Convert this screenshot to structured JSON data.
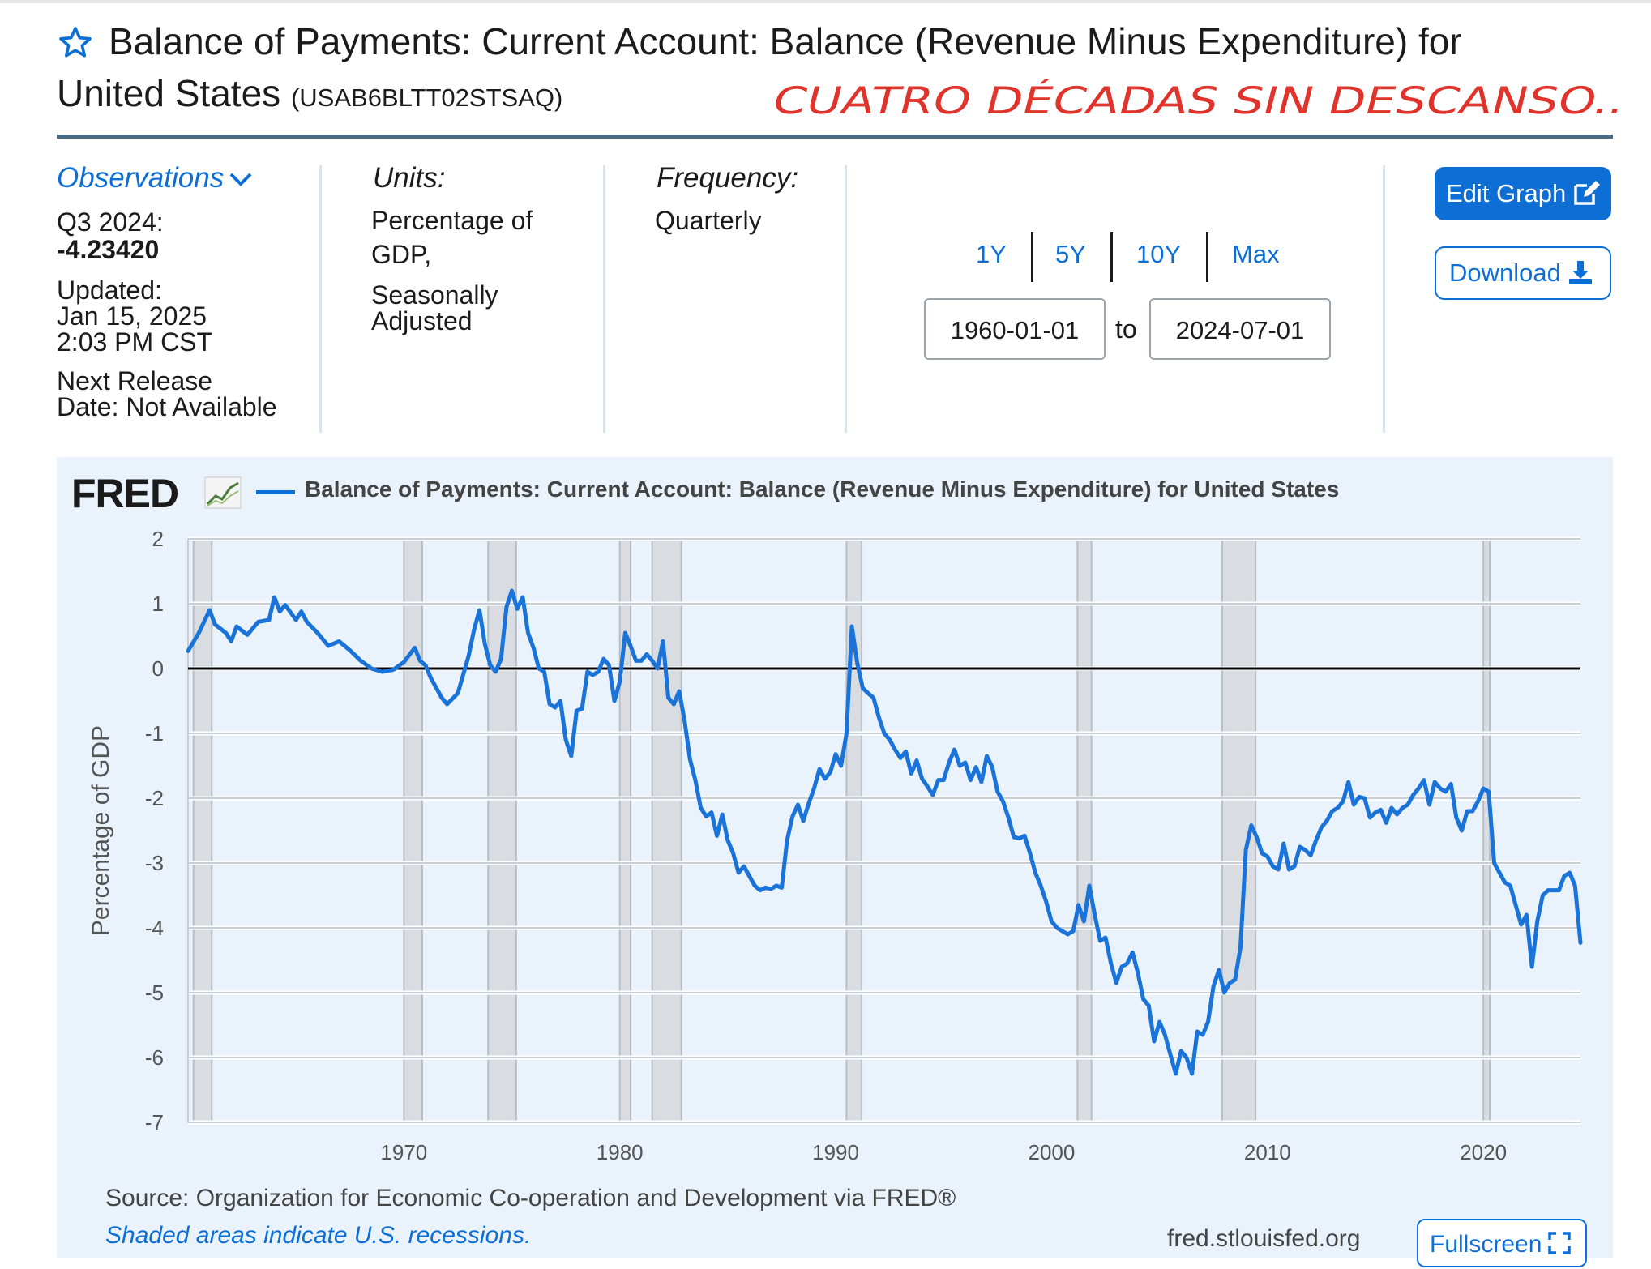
{
  "header": {
    "title_line1": "Balance of Payments: Current Account: Balance (Revenue Minus Expenditure) for",
    "title_line2": "United States",
    "series_id": "(USAB6BLTT02STSAQ)",
    "handwritten_note": "CUATRO DÉCADAS SIN DESCANSO..",
    "star_icon": "star-outline-icon"
  },
  "info": {
    "observations_label": "Observations",
    "obs_period": "Q3 2024:",
    "obs_value": "-4.23420",
    "updated_label": "Updated:",
    "updated_date": "Jan 15, 2025",
    "updated_time": "2:03 PM CST",
    "next_release_line1": "Next Release",
    "next_release_line2": "Date: Not Available",
    "units_header": "Units:",
    "units_line1": "Percentage of",
    "units_line2": "GDP,",
    "units_line3": "Seasonally",
    "units_line4": "Adjusted",
    "frequency_header": "Frequency:",
    "frequency_value": "Quarterly"
  },
  "range": {
    "buttons": [
      "1Y",
      "5Y",
      "10Y",
      "Max"
    ],
    "start": "1960-01-01",
    "to_label": "to",
    "end": "2024-07-01"
  },
  "actions": {
    "edit_graph": "Edit Graph",
    "download": "Download",
    "fullscreen": "Fullscreen"
  },
  "colors": {
    "accent": "#0d6fd6",
    "line": "#1a73d9",
    "recession": "#d9dde2",
    "panel": "#eaf2fb",
    "zero_line": "#000000"
  },
  "footer": {
    "source": "Source: Organization for Economic Co-operation and Development via FRED®",
    "shaded_note": "Shaded areas indicate U.S. recessions.",
    "url": "fred.stlouisfed.org"
  },
  "chart_data": {
    "type": "line",
    "logo": "FRED",
    "title": "Balance of Payments: Current Account: Balance (Revenue Minus Expenditure) for United States",
    "ylabel": "Percentage of GDP",
    "xlabel": "",
    "xlim": [
      1960.0,
      2024.5
    ],
    "ylim": [
      -7,
      2
    ],
    "y_ticks": [
      2,
      1,
      0,
      -1,
      -2,
      -3,
      -4,
      -5,
      -6,
      -7
    ],
    "x_ticks": [
      1970,
      1980,
      1990,
      2000,
      2010,
      2020
    ],
    "grid": true,
    "zero_line": true,
    "legend": "top",
    "recessions": [
      [
        1960.25,
        1961.1
      ],
      [
        1970.0,
        1970.85
      ],
      [
        1973.9,
        1975.2
      ],
      [
        1980.0,
        1980.5
      ],
      [
        1981.5,
        1982.85
      ],
      [
        1990.5,
        1991.2
      ],
      [
        2001.2,
        2001.85
      ],
      [
        2007.9,
        2009.45
      ],
      [
        2020.0,
        2020.3
      ]
    ],
    "series": [
      {
        "name": "Balance of Payments: Current Account: Balance (Revenue Minus Expenditure) for United States",
        "points": [
          [
            1960.0,
            0.27
          ],
          [
            1960.5,
            0.55
          ],
          [
            1961.0,
            0.9
          ],
          [
            1961.25,
            0.68
          ],
          [
            1961.75,
            0.55
          ],
          [
            1962.0,
            0.42
          ],
          [
            1962.25,
            0.65
          ],
          [
            1962.75,
            0.52
          ],
          [
            1963.25,
            0.72
          ],
          [
            1963.75,
            0.75
          ],
          [
            1964.0,
            1.1
          ],
          [
            1964.25,
            0.88
          ],
          [
            1964.5,
            0.98
          ],
          [
            1965.0,
            0.75
          ],
          [
            1965.25,
            0.88
          ],
          [
            1965.5,
            0.72
          ],
          [
            1966.0,
            0.55
          ],
          [
            1966.5,
            0.35
          ],
          [
            1967.0,
            0.42
          ],
          [
            1967.5,
            0.28
          ],
          [
            1968.0,
            0.12
          ],
          [
            1968.5,
            0.0
          ],
          [
            1969.0,
            -0.05
          ],
          [
            1969.5,
            -0.02
          ],
          [
            1970.0,
            0.1
          ],
          [
            1970.5,
            0.32
          ],
          [
            1970.75,
            0.12
          ],
          [
            1971.0,
            0.05
          ],
          [
            1971.25,
            -0.15
          ],
          [
            1971.75,
            -0.45
          ],
          [
            1972.0,
            -0.55
          ],
          [
            1972.5,
            -0.38
          ],
          [
            1973.0,
            0.2
          ],
          [
            1973.25,
            0.6
          ],
          [
            1973.5,
            0.9
          ],
          [
            1973.75,
            0.38
          ],
          [
            1974.0,
            0.05
          ],
          [
            1974.25,
            -0.05
          ],
          [
            1974.5,
            0.15
          ],
          [
            1974.75,
            0.95
          ],
          [
            1975.0,
            1.2
          ],
          [
            1975.25,
            0.92
          ],
          [
            1975.5,
            1.1
          ],
          [
            1975.75,
            0.55
          ],
          [
            1976.0,
            0.32
          ],
          [
            1976.25,
            0.0
          ],
          [
            1976.5,
            -0.05
          ],
          [
            1976.75,
            -0.55
          ],
          [
            1977.0,
            -0.6
          ],
          [
            1977.25,
            -0.5
          ],
          [
            1977.5,
            -1.1
          ],
          [
            1977.75,
            -1.35
          ],
          [
            1978.0,
            -0.65
          ],
          [
            1978.25,
            -0.62
          ],
          [
            1978.5,
            -0.05
          ],
          [
            1978.75,
            -0.1
          ],
          [
            1979.0,
            -0.05
          ],
          [
            1979.25,
            0.15
          ],
          [
            1979.5,
            0.05
          ],
          [
            1979.75,
            -0.5
          ],
          [
            1980.0,
            -0.2
          ],
          [
            1980.25,
            0.55
          ],
          [
            1980.5,
            0.35
          ],
          [
            1980.75,
            0.12
          ],
          [
            1981.0,
            0.12
          ],
          [
            1981.25,
            0.22
          ],
          [
            1981.5,
            0.12
          ],
          [
            1981.75,
            0.0
          ],
          [
            1982.0,
            0.42
          ],
          [
            1982.25,
            -0.45
          ],
          [
            1982.5,
            -0.55
          ],
          [
            1982.75,
            -0.35
          ],
          [
            1983.0,
            -0.8
          ],
          [
            1983.25,
            -1.4
          ],
          [
            1983.5,
            -1.72
          ],
          [
            1983.75,
            -2.15
          ],
          [
            1984.0,
            -2.28
          ],
          [
            1984.25,
            -2.22
          ],
          [
            1984.5,
            -2.58
          ],
          [
            1984.75,
            -2.25
          ],
          [
            1985.0,
            -2.65
          ],
          [
            1985.25,
            -2.85
          ],
          [
            1985.5,
            -3.15
          ],
          [
            1985.75,
            -3.05
          ],
          [
            1986.0,
            -3.2
          ],
          [
            1986.25,
            -3.35
          ],
          [
            1986.5,
            -3.42
          ],
          [
            1986.75,
            -3.38
          ],
          [
            1987.0,
            -3.4
          ],
          [
            1987.25,
            -3.35
          ],
          [
            1987.5,
            -3.38
          ],
          [
            1987.75,
            -2.65
          ],
          [
            1988.0,
            -2.28
          ],
          [
            1988.25,
            -2.1
          ],
          [
            1988.5,
            -2.35
          ],
          [
            1988.75,
            -2.08
          ],
          [
            1989.0,
            -1.85
          ],
          [
            1989.25,
            -1.55
          ],
          [
            1989.5,
            -1.7
          ],
          [
            1989.75,
            -1.6
          ],
          [
            1990.0,
            -1.32
          ],
          [
            1990.25,
            -1.5
          ],
          [
            1990.5,
            -1.0
          ],
          [
            1990.75,
            0.65
          ],
          [
            1991.0,
            0.08
          ],
          [
            1991.25,
            -0.3
          ],
          [
            1991.5,
            -0.38
          ],
          [
            1991.75,
            -0.45
          ],
          [
            1992.0,
            -0.75
          ],
          [
            1992.25,
            -1.0
          ],
          [
            1992.5,
            -1.1
          ],
          [
            1992.75,
            -1.25
          ],
          [
            1993.0,
            -1.38
          ],
          [
            1993.25,
            -1.28
          ],
          [
            1993.5,
            -1.62
          ],
          [
            1993.75,
            -1.42
          ],
          [
            1994.0,
            -1.7
          ],
          [
            1994.25,
            -1.82
          ],
          [
            1994.5,
            -1.95
          ],
          [
            1994.75,
            -1.72
          ],
          [
            1995.0,
            -1.72
          ],
          [
            1995.25,
            -1.45
          ],
          [
            1995.5,
            -1.25
          ],
          [
            1995.75,
            -1.5
          ],
          [
            1996.0,
            -1.45
          ],
          [
            1996.25,
            -1.72
          ],
          [
            1996.5,
            -1.52
          ],
          [
            1996.75,
            -1.75
          ],
          [
            1997.0,
            -1.35
          ],
          [
            1997.25,
            -1.52
          ],
          [
            1997.5,
            -1.9
          ],
          [
            1997.75,
            -2.05
          ],
          [
            1998.0,
            -2.3
          ],
          [
            1998.25,
            -2.6
          ],
          [
            1998.5,
            -2.62
          ],
          [
            1998.75,
            -2.58
          ],
          [
            1999.0,
            -2.85
          ],
          [
            1999.25,
            -3.15
          ],
          [
            1999.5,
            -3.35
          ],
          [
            1999.75,
            -3.6
          ],
          [
            2000.0,
            -3.9
          ],
          [
            2000.25,
            -4.0
          ],
          [
            2000.5,
            -4.05
          ],
          [
            2000.75,
            -4.1
          ],
          [
            2001.0,
            -4.05
          ],
          [
            2001.25,
            -3.65
          ],
          [
            2001.5,
            -3.9
          ],
          [
            2001.75,
            -3.35
          ],
          [
            2002.0,
            -3.8
          ],
          [
            2002.25,
            -4.2
          ],
          [
            2002.5,
            -4.15
          ],
          [
            2002.75,
            -4.55
          ],
          [
            2003.0,
            -4.85
          ],
          [
            2003.25,
            -4.6
          ],
          [
            2003.5,
            -4.55
          ],
          [
            2003.75,
            -4.38
          ],
          [
            2004.0,
            -4.7
          ],
          [
            2004.25,
            -5.1
          ],
          [
            2004.5,
            -5.2
          ],
          [
            2004.75,
            -5.75
          ],
          [
            2005.0,
            -5.45
          ],
          [
            2005.25,
            -5.65
          ],
          [
            2005.5,
            -5.95
          ],
          [
            2005.75,
            -6.25
          ],
          [
            2006.0,
            -5.9
          ],
          [
            2006.25,
            -6.0
          ],
          [
            2006.5,
            -6.25
          ],
          [
            2006.75,
            -5.6
          ],
          [
            2007.0,
            -5.65
          ],
          [
            2007.25,
            -5.45
          ],
          [
            2007.5,
            -4.9
          ],
          [
            2007.75,
            -4.65
          ],
          [
            2008.0,
            -5.0
          ],
          [
            2008.25,
            -4.85
          ],
          [
            2008.5,
            -4.8
          ],
          [
            2008.75,
            -4.3
          ],
          [
            2009.0,
            -2.8
          ],
          [
            2009.25,
            -2.42
          ],
          [
            2009.5,
            -2.6
          ],
          [
            2009.75,
            -2.85
          ],
          [
            2010.0,
            -2.9
          ],
          [
            2010.25,
            -3.05
          ],
          [
            2010.5,
            -3.1
          ],
          [
            2010.75,
            -2.7
          ],
          [
            2011.0,
            -3.1
          ],
          [
            2011.25,
            -3.05
          ],
          [
            2011.5,
            -2.75
          ],
          [
            2011.75,
            -2.8
          ],
          [
            2012.0,
            -2.88
          ],
          [
            2012.25,
            -2.65
          ],
          [
            2012.5,
            -2.45
          ],
          [
            2012.75,
            -2.35
          ],
          [
            2013.0,
            -2.2
          ],
          [
            2013.25,
            -2.15
          ],
          [
            2013.5,
            -2.05
          ],
          [
            2013.75,
            -1.75
          ],
          [
            2014.0,
            -2.1
          ],
          [
            2014.25,
            -1.98
          ],
          [
            2014.5,
            -2.0
          ],
          [
            2014.75,
            -2.3
          ],
          [
            2015.0,
            -2.22
          ],
          [
            2015.25,
            -2.18
          ],
          [
            2015.5,
            -2.38
          ],
          [
            2015.75,
            -2.15
          ],
          [
            2016.0,
            -2.25
          ],
          [
            2016.25,
            -2.15
          ],
          [
            2016.5,
            -2.1
          ],
          [
            2016.75,
            -1.95
          ],
          [
            2017.0,
            -1.85
          ],
          [
            2017.25,
            -1.72
          ],
          [
            2017.5,
            -2.1
          ],
          [
            2017.75,
            -1.75
          ],
          [
            2018.0,
            -1.85
          ],
          [
            2018.25,
            -1.9
          ],
          [
            2018.5,
            -1.78
          ],
          [
            2018.75,
            -2.3
          ],
          [
            2019.0,
            -2.5
          ],
          [
            2019.25,
            -2.2
          ],
          [
            2019.5,
            -2.2
          ],
          [
            2019.75,
            -2.05
          ],
          [
            2020.0,
            -1.85
          ],
          [
            2020.25,
            -1.9
          ],
          [
            2020.5,
            -3.0
          ],
          [
            2020.75,
            -3.15
          ],
          [
            2021.0,
            -3.3
          ],
          [
            2021.25,
            -3.35
          ],
          [
            2021.5,
            -3.65
          ],
          [
            2021.75,
            -3.95
          ],
          [
            2022.0,
            -3.8
          ],
          [
            2022.25,
            -4.6
          ],
          [
            2022.5,
            -3.9
          ],
          [
            2022.75,
            -3.5
          ],
          [
            2023.0,
            -3.42
          ],
          [
            2023.25,
            -3.42
          ],
          [
            2023.5,
            -3.42
          ],
          [
            2023.75,
            -3.2
          ],
          [
            2024.0,
            -3.15
          ],
          [
            2024.25,
            -3.35
          ],
          [
            2024.5,
            -4.23
          ]
        ]
      }
    ]
  }
}
